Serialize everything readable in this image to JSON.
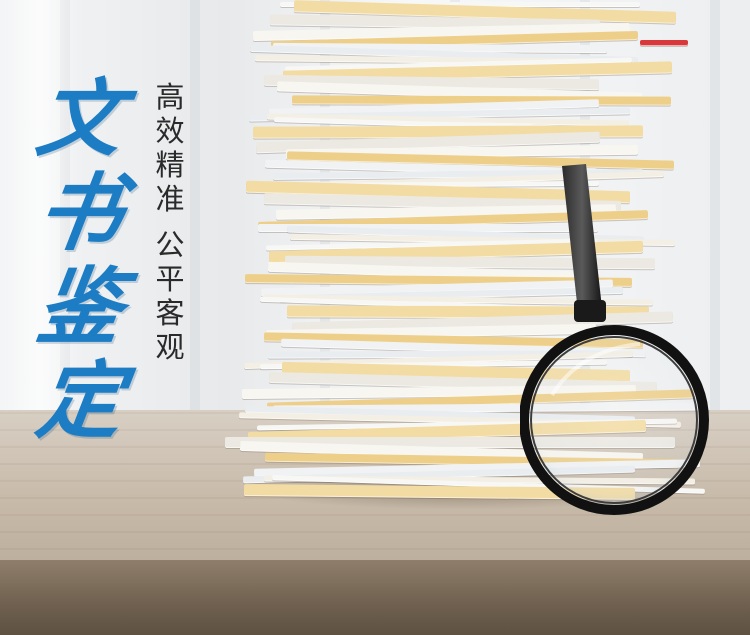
{
  "title": "文书鉴定",
  "subtitle_line1": "高效精准",
  "subtitle_line2": "公平客观",
  "colors": {
    "title_blue": "#1c7cc4",
    "subtitle_text": "#2a2a2a",
    "table_wood": "#c7baa9",
    "paper_white": "#f6f6f4",
    "folder_yellow": "#eecf8a",
    "magnifier_black": "#111111"
  },
  "icons": [
    "magnifying-glass-icon"
  ]
}
